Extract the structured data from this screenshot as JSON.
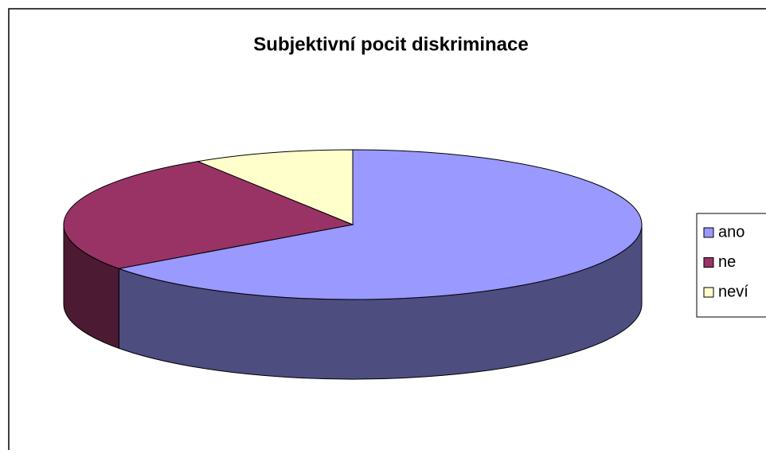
{
  "chart_data": {
    "type": "pie3d",
    "title": "Subjektivní pocit diskriminace",
    "categories": [
      "ano",
      "ne",
      "neví"
    ],
    "values": [
      65,
      26,
      9
    ],
    "colors": [
      "#9999ff",
      "#993366",
      "#ffffcc"
    ],
    "side_colors": [
      "#4d4d80",
      "#4d1a33",
      "#80806a"
    ],
    "legend": "right"
  }
}
